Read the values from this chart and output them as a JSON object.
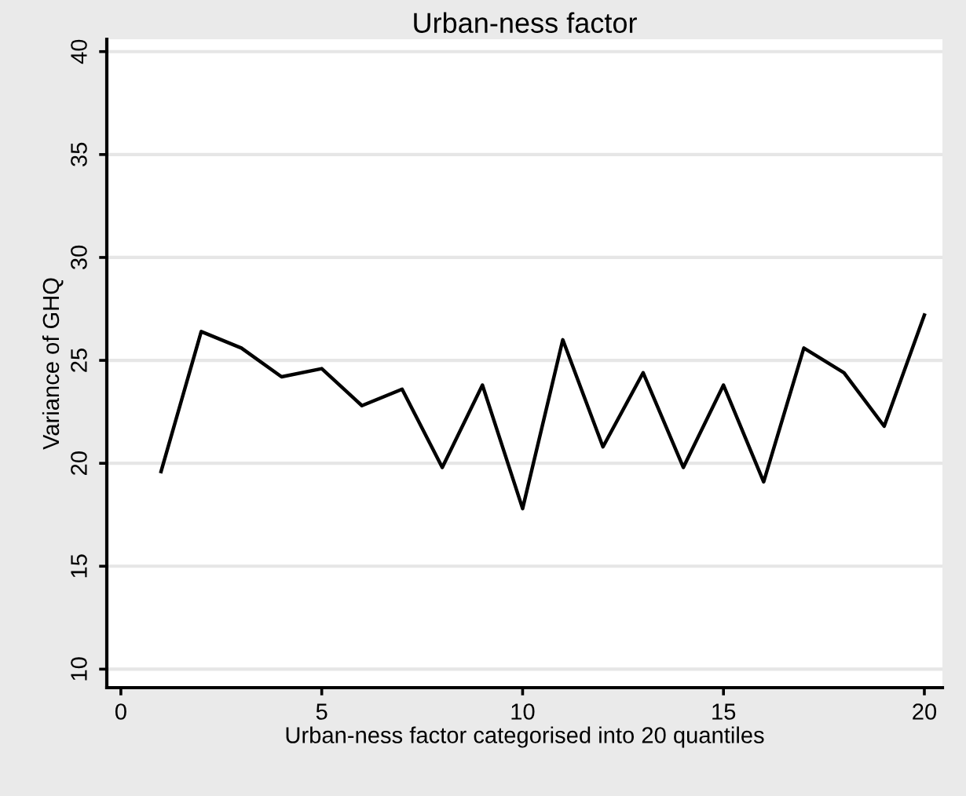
{
  "chart_data": {
    "type": "line",
    "title": "Urban-ness factor",
    "xlabel": "Urban-ness factor categorised into 20 quantiles",
    "ylabel": "Variance of GHQ",
    "x": [
      1,
      2,
      3,
      4,
      5,
      6,
      7,
      8,
      9,
      10,
      11,
      12,
      13,
      14,
      15,
      16,
      17,
      18,
      19,
      20
    ],
    "series": [
      {
        "color": "#000000",
        "values": [
          19.6,
          26.4,
          25.6,
          24.2,
          24.6,
          22.8,
          23.6,
          19.8,
          23.8,
          17.8,
          26.0,
          20.8,
          24.4,
          19.8,
          23.8,
          19.1,
          25.6,
          24.4,
          21.8,
          27.2
        ]
      }
    ],
    "xlim": [
      -0.35,
      20.45
    ],
    "ylim": [
      9.1,
      40.6
    ],
    "xticks": [
      0,
      5,
      10,
      15,
      20
    ],
    "yticks": [
      10,
      15,
      20,
      25,
      30,
      35,
      40
    ],
    "grid": "y",
    "marker": "none",
    "line_style": "solid"
  }
}
